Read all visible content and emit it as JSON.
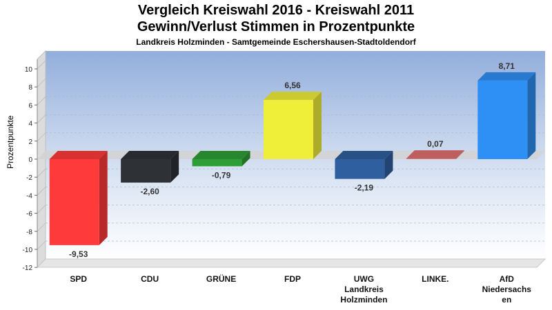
{
  "title": "Vergleich Kreiswahl 2016 - Kreiswahl 2011",
  "subtitle": "Gewinn/Verlust Stimmen in Prozentpunkte",
  "subtitle2": "Landkreis Holzminden - Samtgemeinde Eschershausen-Stadtoldendorf",
  "chart_data": {
    "type": "bar",
    "title": "Vergleich Kreiswahl 2016 - Kreiswahl 2011",
    "subtitle": "Gewinn/Verlust Stimmen in Prozentpunkte",
    "xlabel": "",
    "ylabel": "Prozentpunkte",
    "ylim": [
      -12,
      11
    ],
    "yticks": [
      "10",
      "8",
      "6",
      "4",
      "2",
      "0",
      "-2",
      "-4",
      "-6",
      "-8",
      "-10",
      "-12"
    ],
    "grid": true,
    "categories": [
      [
        "SPD"
      ],
      [
        "CDU"
      ],
      [
        "GRÜNE"
      ],
      [
        "FDP"
      ],
      [
        "UWG",
        "Landkreis",
        "Holzminden"
      ],
      [
        "LINKE."
      ],
      [
        "AfD",
        "Niedersachs",
        "en"
      ]
    ],
    "values": [
      -9.53,
      -2.6,
      -0.79,
      6.56,
      -2.19,
      0.07,
      8.71
    ],
    "value_labels": [
      "-9,53",
      "-2,60",
      "-0,79",
      "6,56",
      "-2,19",
      "0,07",
      "8,71"
    ],
    "colors": [
      "#ff3a3a",
      "#2e3136",
      "#2e9e36",
      "#efef3a",
      "#2f5f9e",
      "#e07070",
      "#2e8ff5"
    ]
  }
}
